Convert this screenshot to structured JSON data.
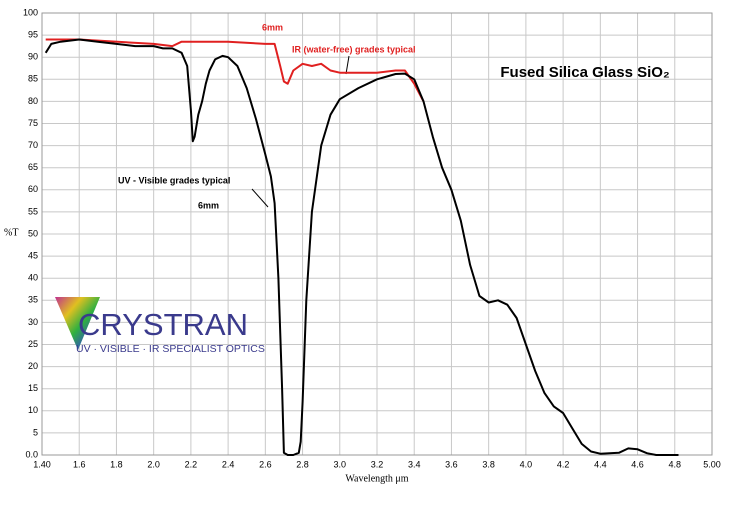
{
  "chart_data": {
    "type": "line",
    "title": "Fused Silica Glass SiO₂",
    "x_label": "Wavelength μm",
    "y_label": "%T",
    "annotations": [
      "6mm",
      "IR (water-free) grades typical",
      "UV - Visible grades typical",
      "6mm"
    ],
    "logo": {
      "name": "CRYSTRAN",
      "tagline": "UV · VISIBLE · IR SPECIALIST OPTICS"
    },
    "xlim": [
      1.4,
      5.0
    ],
    "ylim": [
      0,
      100
    ],
    "xticks": [
      {
        "value": 1.4,
        "label": "1.40"
      },
      1.6,
      1.8,
      {
        "value": 2,
        "label": "2.0"
      },
      2.2,
      2.4,
      2.6,
      2.8,
      {
        "value": 3,
        "label": "3.0"
      },
      3.2,
      3.4,
      3.6,
      3.8,
      {
        "value": 4,
        "label": "4.0"
      },
      4.2,
      4.4,
      4.6,
      4.8,
      {
        "value": 5,
        "label": "5.00"
      }
    ],
    "yticks": [
      {
        "value": 0,
        "label": "0.0"
      },
      5,
      10,
      15,
      20,
      25,
      30,
      35,
      40,
      45,
      50,
      55,
      60,
      65,
      70,
      75,
      80,
      85,
      90,
      95,
      100
    ],
    "grid": true,
    "series": [
      {
        "name": "UV - Visible grades typical",
        "color": "#000000",
        "x": [
          1.42,
          1.45,
          1.5,
          1.6,
          1.7,
          1.8,
          1.9,
          2.0,
          2.05,
          2.1,
          2.15,
          2.18,
          2.2,
          2.21,
          2.22,
          2.24,
          2.26,
          2.28,
          2.3,
          2.33,
          2.37,
          2.4,
          2.45,
          2.5,
          2.55,
          2.6,
          2.63,
          2.65,
          2.67,
          2.69,
          2.7,
          2.72,
          2.75,
          2.78,
          2.79,
          2.8,
          2.82,
          2.85,
          2.9,
          2.95,
          3.0,
          3.1,
          3.2,
          3.3,
          3.35,
          3.4,
          3.45,
          3.5,
          3.55,
          3.6,
          3.65,
          3.7,
          3.75,
          3.8,
          3.85,
          3.9,
          3.95,
          4.0,
          4.05,
          4.1,
          4.15,
          4.2,
          4.25,
          4.3,
          4.35,
          4.4,
          4.5,
          4.55,
          4.6,
          4.65,
          4.7,
          4.8,
          4.82
        ],
        "values": [
          91,
          93,
          93.5,
          94,
          93.5,
          93,
          92.5,
          92.5,
          92,
          92,
          91,
          88,
          78,
          71,
          72,
          77,
          80,
          84,
          87,
          89.5,
          90.3,
          90,
          88,
          83,
          76,
          68,
          63,
          57,
          40,
          15,
          0.5,
          0,
          0,
          0.5,
          3,
          12,
          35,
          55,
          70,
          77,
          80.5,
          83,
          85,
          86.2,
          86.3,
          85,
          80,
          72,
          65,
          60,
          53,
          43,
          36,
          34.5,
          35,
          34,
          31,
          25,
          19,
          14,
          11,
          9.5,
          6,
          2.5,
          0.8,
          0.3,
          0.5,
          1.5,
          1.3,
          0.4,
          0,
          0,
          0
        ]
      },
      {
        "name": "IR (water-free) grades typical",
        "color": "#e02020",
        "x": [
          1.42,
          1.6,
          2.0,
          2.1,
          2.15,
          2.2,
          2.4,
          2.6,
          2.65,
          2.68,
          2.7,
          2.72,
          2.75,
          2.8,
          2.85,
          2.9,
          2.95,
          3.0,
          3.1,
          3.2,
          3.3,
          3.35,
          3.4,
          3.45
        ],
        "values": [
          94,
          94,
          93,
          92.5,
          93.5,
          93.5,
          93.5,
          93,
          93,
          88,
          84.5,
          84,
          87,
          88.5,
          88,
          88.5,
          87,
          86.5,
          86.5,
          86.5,
          87,
          87,
          84,
          80
        ]
      }
    ]
  }
}
